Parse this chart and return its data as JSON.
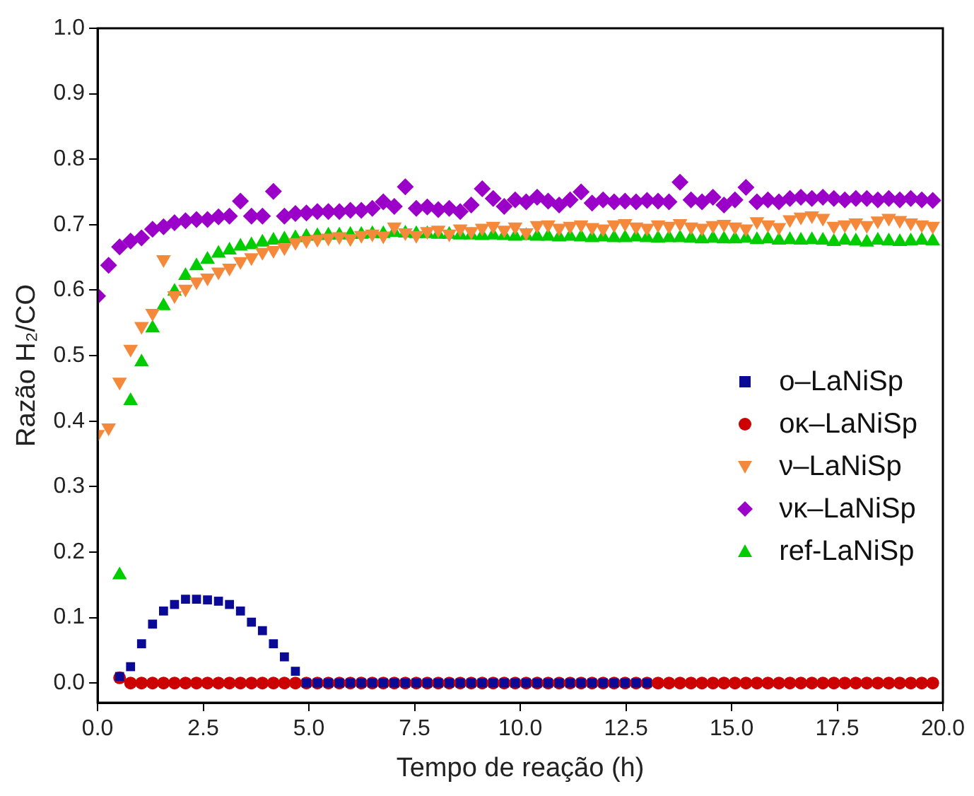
{
  "chart_data": {
    "type": "scatter",
    "xlabel": "Tempo de reação (h)",
    "ylabel": "Razão H₂/CO",
    "x": [
      0,
      0.26,
      0.52,
      0.78,
      1.04,
      1.3,
      1.56,
      1.82,
      2.08,
      2.34,
      2.6,
      2.86,
      3.12,
      3.38,
      3.64,
      3.9,
      4.16,
      4.42,
      4.68,
      4.94,
      5.2,
      5.46,
      5.72,
      5.98,
      6.24,
      6.5,
      6.76,
      7.02,
      7.28,
      7.54,
      7.8,
      8.06,
      8.32,
      8.58,
      8.84,
      9.1,
      9.36,
      9.62,
      9.88,
      10.14,
      10.4,
      10.66,
      10.92,
      11.18,
      11.44,
      11.7,
      11.96,
      12.22,
      12.48,
      12.74,
      13.0,
      13.26,
      13.52,
      13.78,
      14.04,
      14.3,
      14.56,
      14.82,
      15.08,
      15.34,
      15.6,
      15.86,
      16.12,
      16.38,
      16.64,
      16.9,
      17.16,
      17.42,
      17.68,
      17.94,
      18.2,
      18.46,
      18.72,
      18.98,
      19.24,
      19.5,
      19.76
    ],
    "series": [
      {
        "name": "ο–LaNiSp",
        "color": "#0a0a96",
        "marker": "square",
        "values": [
          null,
          null,
          0.01,
          0.025,
          0.06,
          0.09,
          0.11,
          0.12,
          0.128,
          0.128,
          0.127,
          0.125,
          0.12,
          0.11,
          0.093,
          0.08,
          0.06,
          0.04,
          0.018,
          0,
          0,
          0,
          0,
          0,
          0,
          0,
          0,
          0,
          0,
          0,
          0,
          0,
          0,
          0,
          0,
          0,
          0,
          0,
          0,
          0,
          0,
          0,
          0,
          0,
          0,
          0,
          0,
          0,
          0,
          0,
          0,
          null,
          null,
          null,
          null,
          null,
          null,
          null,
          null,
          null,
          null,
          null,
          null,
          null,
          null,
          null,
          null,
          null,
          null,
          null,
          null,
          null,
          null,
          null,
          null,
          null,
          null
        ]
      },
      {
        "name": "οκ–LaNiSp",
        "color": "#cc0000",
        "marker": "circle",
        "values": [
          null,
          null,
          0.008,
          0,
          0,
          0,
          0,
          0,
          0,
          0,
          0,
          0,
          0,
          0,
          0,
          0,
          0,
          0,
          0,
          0,
          0,
          0,
          0,
          0,
          0,
          0,
          0,
          0,
          0,
          0,
          0,
          0,
          0,
          0,
          0,
          0,
          0,
          0,
          0,
          0,
          0,
          0,
          0,
          0,
          0,
          0,
          0,
          0,
          0,
          0,
          0,
          0,
          0,
          0,
          0,
          0,
          0,
          0,
          0,
          0,
          0,
          0,
          0,
          0,
          0,
          0,
          0,
          0,
          0,
          0,
          0,
          0,
          0,
          0,
          0,
          0,
          0
        ]
      },
      {
        "name": "ν–LaNiSp",
        "color": "#f5893b",
        "marker": "triangle-down",
        "values": [
          0.38,
          0.39,
          0.46,
          0.51,
          0.545,
          0.565,
          0.647,
          0.592,
          0.602,
          0.613,
          0.619,
          0.628,
          0.634,
          0.644,
          0.65,
          0.658,
          0.661,
          0.665,
          0.673,
          0.676,
          0.678,
          0.68,
          0.682,
          0.679,
          0.684,
          0.686,
          0.683,
          0.697,
          0.688,
          0.684,
          0.69,
          0.692,
          0.686,
          0.694,
          0.69,
          0.695,
          0.698,
          0.692,
          0.697,
          0.688,
          0.699,
          0.7,
          0.695,
          0.698,
          0.7,
          0.696,
          0.694,
          0.7,
          0.702,
          0.697,
          0.695,
          0.7,
          0.698,
          0.702,
          0.697,
          0.695,
          0.699,
          0.701,
          0.697,
          0.694,
          0.705,
          0.7,
          0.696,
          0.708,
          0.712,
          0.714,
          0.71,
          0.698,
          0.7,
          0.703,
          0.699,
          0.706,
          0.71,
          0.707,
          0.703,
          0.7,
          0.698
        ]
      },
      {
        "name": "νκ–LaNiSp",
        "color": "#9b00c8",
        "marker": "diamond",
        "values": [
          0.591,
          0.638,
          0.666,
          0.675,
          0.68,
          0.693,
          0.697,
          0.703,
          0.706,
          0.708,
          0.708,
          0.712,
          0.713,
          0.736,
          0.713,
          0.713,
          0.751,
          0.713,
          0.717,
          0.718,
          0.72,
          0.72,
          0.72,
          0.722,
          0.722,
          0.725,
          0.735,
          0.728,
          0.758,
          0.725,
          0.727,
          0.723,
          0.725,
          0.72,
          0.73,
          0.755,
          0.74,
          0.728,
          0.738,
          0.735,
          0.742,
          0.736,
          0.73,
          0.738,
          0.75,
          0.733,
          0.738,
          0.735,
          0.736,
          0.735,
          0.737,
          0.736,
          0.735,
          0.765,
          0.738,
          0.735,
          0.742,
          0.73,
          0.738,
          0.757,
          0.735,
          0.738,
          0.735,
          0.74,
          0.742,
          0.74,
          0.742,
          0.74,
          0.738,
          0.74,
          0.74,
          0.738,
          0.74,
          0.738,
          0.74,
          0.738,
          0.737
        ]
      },
      {
        "name": "ref-LaNiSp",
        "color": "#00cc00",
        "marker": "triangle",
        "values": [
          null,
          null,
          0.165,
          0.431,
          0.49,
          0.542,
          0.576,
          0.598,
          0.622,
          0.637,
          0.647,
          0.656,
          0.661,
          0.667,
          0.669,
          0.673,
          0.676,
          0.678,
          0.68,
          0.682,
          0.683,
          0.684,
          0.684,
          0.685,
          0.685,
          0.686,
          0.686,
          0.688,
          0.687,
          0.686,
          0.686,
          0.685,
          0.685,
          0.684,
          0.684,
          0.683,
          0.684,
          0.683,
          0.682,
          0.683,
          0.682,
          0.682,
          0.681,
          0.682,
          0.681,
          0.68,
          0.681,
          0.68,
          0.68,
          0.681,
          0.68,
          0.679,
          0.68,
          0.68,
          0.679,
          0.678,
          0.679,
          0.678,
          0.678,
          0.679,
          0.677,
          0.678,
          0.676,
          0.677,
          0.676,
          0.677,
          0.676,
          0.674,
          0.676,
          0.675,
          0.673,
          0.676,
          0.675,
          0.674,
          0.675,
          0.676,
          0.675
        ]
      }
    ],
    "xlim": [
      0,
      20
    ],
    "xticks": [
      {
        "value": 0,
        "label": "0.0"
      },
      {
        "value": 2.5,
        "label": "2.5"
      },
      {
        "value": 5,
        "label": "5.0"
      },
      {
        "value": 7.5,
        "label": "7.5"
      },
      {
        "value": 10,
        "label": "10.0"
      },
      {
        "value": 12.5,
        "label": "12.5"
      },
      {
        "value": 15,
        "label": "15.0"
      },
      {
        "value": 17.5,
        "label": "17.5"
      },
      {
        "value": 20,
        "label": "20.0"
      }
    ],
    "ylim": [
      -0.03,
      1
    ],
    "yticks": [
      {
        "value": 0,
        "label": "0.0"
      },
      {
        "value": 0.1,
        "label": "0.1"
      },
      {
        "value": 0.2,
        "label": "0.2"
      },
      {
        "value": 0.3,
        "label": "0.3"
      },
      {
        "value": 0.4,
        "label": "0.4"
      },
      {
        "value": 0.5,
        "label": "0.5"
      },
      {
        "value": 0.6,
        "label": "0.6"
      },
      {
        "value": 0.7,
        "label": "0.7"
      },
      {
        "value": 0.8,
        "label": "0.8"
      },
      {
        "value": 0.9,
        "label": "0.9"
      },
      {
        "value": 1,
        "label": "1.0"
      }
    ],
    "grid": false,
    "legend": "right"
  }
}
